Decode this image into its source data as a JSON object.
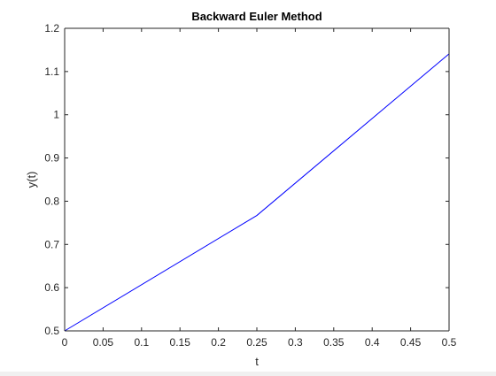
{
  "chart_data": {
    "type": "line",
    "title": "Backward Euler Method",
    "xlabel": "t",
    "ylabel": "y(t)",
    "xlim": [
      0,
      0.5
    ],
    "ylim": [
      0.5,
      1.2
    ],
    "xticks": [
      0,
      0.05,
      0.1,
      0.15,
      0.2,
      0.25,
      0.3,
      0.35,
      0.4,
      0.45,
      0.5
    ],
    "yticks": [
      0.5,
      0.6,
      0.7,
      0.8,
      0.9,
      1.0,
      1.1,
      1.2
    ],
    "xtick_labels": [
      "0",
      "0.05",
      "0.1",
      "0.15",
      "0.2",
      "0.25",
      "0.3",
      "0.35",
      "0.4",
      "0.45",
      "0.5"
    ],
    "ytick_labels": [
      "0.5",
      "0.6",
      "0.7",
      "0.8",
      "0.9",
      "1",
      "1.1",
      "1.2"
    ],
    "grid": false,
    "series": [
      {
        "color": "#0000ff",
        "x": [
          0,
          0.25,
          0.5
        ],
        "y": [
          0.5,
          0.767,
          1.141
        ]
      }
    ]
  }
}
